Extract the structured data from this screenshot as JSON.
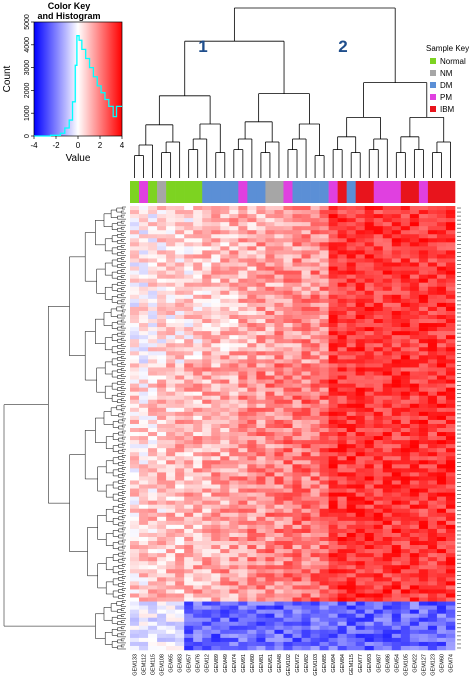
{
  "chart_data": {
    "type": "heatmap",
    "color_key": {
      "title_line1": "Color Key",
      "title_line2": "and Histogram",
      "ylabel": "Count",
      "xlabel": "Value",
      "x_ticks": [
        "-4",
        "-2",
        "0",
        "2",
        "4"
      ],
      "y_ticks": [
        "0",
        "1000",
        "2000",
        "3000",
        "4000",
        "5000"
      ],
      "xlim": [
        -4,
        4
      ],
      "ylim": [
        0,
        5000
      ],
      "gradient_colors": [
        "#0000ff",
        "#ffffff",
        "#ff0000"
      ],
      "histogram_color": "#00ffff",
      "histogram": [
        {
          "x": -4.0,
          "y": 0
        },
        {
          "x": -2.5,
          "y": 30
        },
        {
          "x": -1.6,
          "y": 120
        },
        {
          "x": -1.2,
          "y": 350
        },
        {
          "x": -0.8,
          "y": 700
        },
        {
          "x": -0.5,
          "y": 1500
        },
        {
          "x": -0.25,
          "y": 3100
        },
        {
          "x": -0.1,
          "y": 4400
        },
        {
          "x": 0.1,
          "y": 4200
        },
        {
          "x": 0.35,
          "y": 3800
        },
        {
          "x": 0.7,
          "y": 3400
        },
        {
          "x": 1.05,
          "y": 3000
        },
        {
          "x": 1.4,
          "y": 2600
        },
        {
          "x": 1.75,
          "y": 2200
        },
        {
          "x": 2.1,
          "y": 1900
        },
        {
          "x": 2.45,
          "y": 1600
        },
        {
          "x": 2.8,
          "y": 1300
        },
        {
          "x": 3.2,
          "y": 850
        },
        {
          "x": 3.5,
          "y": 1300
        },
        {
          "x": 4.0,
          "y": 1300
        }
      ]
    },
    "cluster_labels": [
      "1",
      "2"
    ],
    "cluster_label_color": "#1f4e8c",
    "legend": {
      "title": "Sample Key",
      "entries": [
        {
          "label": "Normal",
          "color": "#7dd321"
        },
        {
          "label": "NM",
          "color": "#a6a6a6"
        },
        {
          "label": "DM",
          "color": "#5b8fd6"
        },
        {
          "label": "PM",
          "color": "#e040e0"
        },
        {
          "label": "IBM",
          "color": "#e8141c"
        }
      ]
    },
    "samples": [
      {
        "id": "GEM133",
        "group": "Normal"
      },
      {
        "id": "GEM112",
        "group": "PM"
      },
      {
        "id": "GEM115",
        "group": "Normal"
      },
      {
        "id": "GEM108",
        "group": "NM"
      },
      {
        "id": "GEM65",
        "group": "Normal"
      },
      {
        "id": "GEM83",
        "group": "Normal"
      },
      {
        "id": "GEM57",
        "group": "Normal"
      },
      {
        "id": "GEM76",
        "group": "Normal"
      },
      {
        "id": "GEM12",
        "group": "DM"
      },
      {
        "id": "GEM89",
        "group": "DM"
      },
      {
        "id": "GEM49",
        "group": "DM"
      },
      {
        "id": "GEM74",
        "group": "DM"
      },
      {
        "id": "GEM91",
        "group": "PM"
      },
      {
        "id": "GEM80",
        "group": "DM"
      },
      {
        "id": "GEM81",
        "group": "DM"
      },
      {
        "id": "GEM51",
        "group": "NM"
      },
      {
        "id": "GEM48",
        "group": "NM"
      },
      {
        "id": "GEM102",
        "group": "PM"
      },
      {
        "id": "GEM72",
        "group": "DM"
      },
      {
        "id": "GEM82",
        "group": "DM"
      },
      {
        "id": "GEM103",
        "group": "DM"
      },
      {
        "id": "GEM85",
        "group": "DM"
      },
      {
        "id": "GEM94",
        "group": "PM"
      },
      {
        "id": "GEM84",
        "group": "IBM"
      },
      {
        "id": "GEM115",
        "group": "DM"
      },
      {
        "id": "GEM77",
        "group": "IBM"
      },
      {
        "id": "GEM93",
        "group": "IBM"
      },
      {
        "id": "GEM87",
        "group": "PM"
      },
      {
        "id": "GEM86",
        "group": "PM"
      },
      {
        "id": "GEM54",
        "group": "PM"
      },
      {
        "id": "GEM105",
        "group": "IBM"
      },
      {
        "id": "GEM22",
        "group": "IBM"
      },
      {
        "id": "GEM127",
        "group": "PM"
      },
      {
        "id": "GEM123",
        "group": "IBM"
      },
      {
        "id": "GEM60",
        "group": "IBM"
      },
      {
        "id": "GEM74",
        "group": "IBM"
      }
    ],
    "heatmap_profile": {
      "note_blocks": [
        {
          "rows": "top 0.00-0.60",
          "cluster1": "weak red / white, mixed",
          "cluster2": "strong red"
        },
        {
          "rows": "middle 0.60-0.88",
          "cluster1": "red",
          "cluster2": "strong red"
        },
        {
          "rows": "bottom 0.88-1.00",
          "cluster1": "blue",
          "cluster2": "blue"
        }
      ]
    }
  }
}
